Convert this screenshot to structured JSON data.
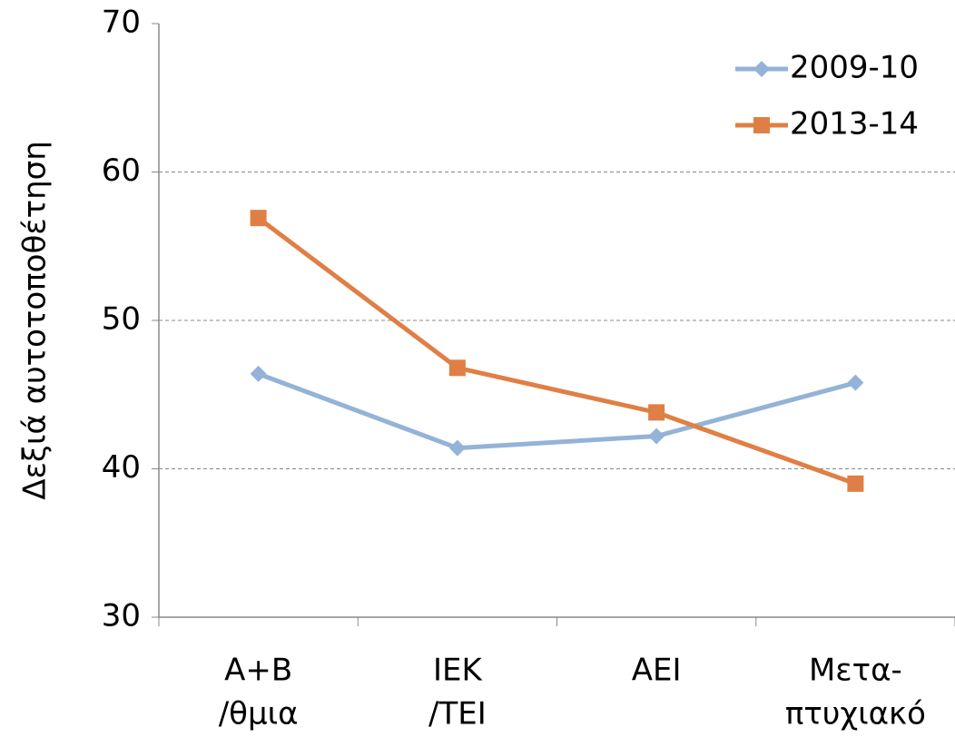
{
  "chart_data": {
    "type": "line",
    "y_label": "Δεξιά αυτοτοποθέτηση",
    "categories": [
      [
        "A+B",
        "/θμια"
      ],
      [
        "IEK",
        "/TEI"
      ],
      [
        "AEI"
      ],
      [
        "Μετα-",
        "πτυχιακό"
      ]
    ],
    "series": [
      {
        "name": "2009-10",
        "color": "#93b3d7",
        "marker": "diamond",
        "values": [
          46.4,
          41.4,
          42.2,
          45.8
        ]
      },
      {
        "name": "2013-14",
        "color": "#e07f45",
        "marker": "square",
        "values": [
          56.9,
          46.8,
          43.8,
          39.0
        ]
      }
    ],
    "ylim": [
      30,
      70
    ],
    "yticks": [
      30,
      40,
      50,
      60,
      70
    ],
    "grid": true,
    "legend": "top-right"
  }
}
